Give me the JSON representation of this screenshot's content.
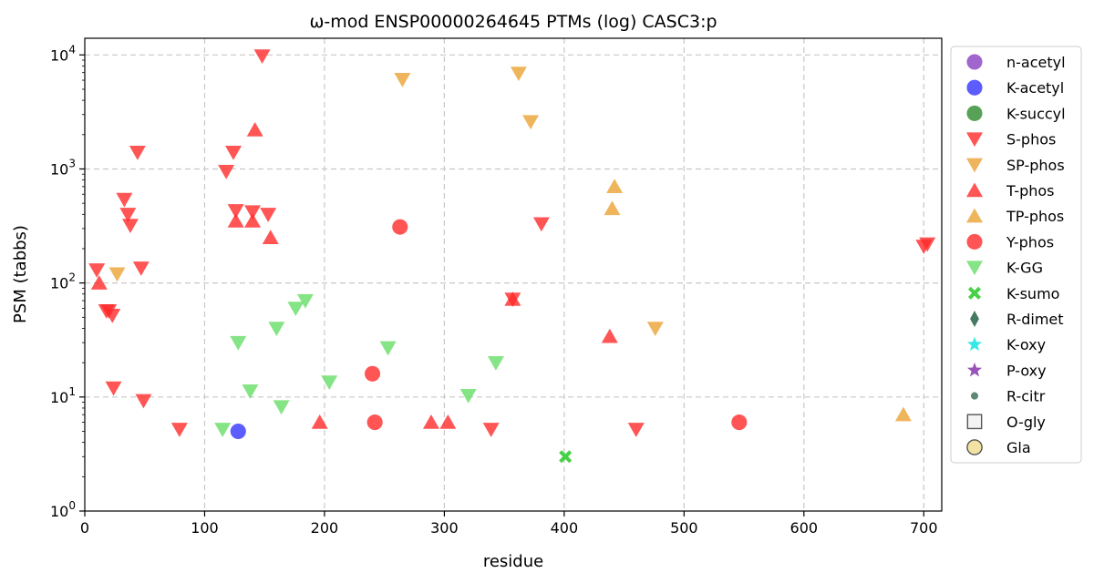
{
  "chart_data": {
    "type": "scatter",
    "title": "ω-mod ENSP00000264645 PTMs (log) CASC3:p",
    "xlabel": "residue",
    "ylabel": "PSM (tabbs)",
    "xlim": [
      0,
      715
    ],
    "ylim": [
      1,
      14000
    ],
    "yscale": "log",
    "grid": true,
    "legend_position": "right",
    "x_ticks": [
      {
        "value": 0,
        "label": "0"
      },
      {
        "value": 100,
        "label": "100"
      },
      {
        "value": 200,
        "label": "200"
      },
      {
        "value": 300,
        "label": "300"
      },
      {
        "value": 400,
        "label": "400"
      },
      {
        "value": 500,
        "label": "500"
      },
      {
        "value": 600,
        "label": "600"
      },
      {
        "value": 700,
        "label": "700"
      }
    ],
    "y_ticks": [
      {
        "value": 1,
        "base": "10",
        "exp": "0"
      },
      {
        "value": 10,
        "base": "10",
        "exp": "1"
      },
      {
        "value": 100,
        "base": "10",
        "exp": "2"
      },
      {
        "value": 1000,
        "base": "10",
        "exp": "3"
      },
      {
        "value": 10000,
        "base": "10",
        "exp": "4"
      }
    ],
    "series": [
      {
        "name": "n-acetyl",
        "marker": "circle",
        "color": "#8a3fc2",
        "points": []
      },
      {
        "name": "K-acetyl",
        "marker": "circle",
        "color": "#3333ff",
        "points": [
          [
            128,
            5
          ]
        ]
      },
      {
        "name": "K-succyl",
        "marker": "circle",
        "color": "#2e8b2e",
        "points": []
      },
      {
        "name": "S-phos",
        "marker": "triangle-down",
        "color": "#ff2b2b",
        "points": [
          [
            10,
            130
          ],
          [
            18,
            57
          ],
          [
            20,
            57
          ],
          [
            23,
            52
          ],
          [
            24,
            12
          ],
          [
            33,
            540
          ],
          [
            36,
            400
          ],
          [
            38,
            320
          ],
          [
            44,
            1400
          ],
          [
            47,
            135
          ],
          [
            49,
            9.3
          ],
          [
            79,
            5.2
          ],
          [
            118,
            950
          ],
          [
            124,
            1400
          ],
          [
            126,
            430
          ],
          [
            140,
            420
          ],
          [
            148,
            9800
          ],
          [
            153,
            400
          ],
          [
            339,
            5.2
          ],
          [
            357,
            72
          ],
          [
            381,
            330
          ],
          [
            460,
            5.2
          ],
          [
            700,
            210
          ],
          [
            703,
            220
          ]
        ]
      },
      {
        "name": "SP-phos",
        "marker": "triangle-down",
        "color": "#eba233",
        "points": [
          [
            27,
            120
          ],
          [
            265,
            6100
          ],
          [
            362,
            6900
          ],
          [
            372,
            2600
          ],
          [
            476,
            40
          ]
        ]
      },
      {
        "name": "T-phos",
        "marker": "triangle-up",
        "color": "#ff2b2b",
        "points": [
          [
            12,
            100
          ],
          [
            126,
            350
          ],
          [
            140,
            350
          ],
          [
            142,
            2200
          ],
          [
            155,
            250
          ],
          [
            196,
            6
          ],
          [
            289,
            6
          ],
          [
            303,
            6
          ],
          [
            357,
            72
          ],
          [
            438,
            34
          ]
        ]
      },
      {
        "name": "TP-phos",
        "marker": "triangle-up",
        "color": "#eba233",
        "points": [
          [
            440,
            450
          ],
          [
            442,
            700
          ],
          [
            683,
            7
          ]
        ]
      },
      {
        "name": "Y-phos",
        "marker": "circle",
        "color": "#ff2b2b",
        "points": [
          [
            240,
            16
          ],
          [
            242,
            6
          ],
          [
            263,
            310
          ],
          [
            546,
            6
          ]
        ]
      },
      {
        "name": "K-GG",
        "marker": "triangle-down",
        "color": "#66dd66",
        "points": [
          [
            115,
            5.2
          ],
          [
            128,
            30
          ],
          [
            138,
            11.3
          ],
          [
            160,
            40
          ],
          [
            164,
            8.2
          ],
          [
            176,
            60
          ],
          [
            184,
            70
          ],
          [
            204,
            13.5
          ],
          [
            253,
            27
          ],
          [
            320,
            10.3
          ],
          [
            343,
            20
          ]
        ]
      },
      {
        "name": "K-sumo",
        "marker": "x",
        "color": "#33cc33",
        "points": [
          [
            401,
            3
          ]
        ]
      },
      {
        "name": "R-dimet",
        "marker": "diamond",
        "color": "#2f6b4f",
        "points": []
      },
      {
        "name": "K-oxy",
        "marker": "star",
        "color": "#22e6e6",
        "points": []
      },
      {
        "name": "P-oxy",
        "marker": "star",
        "color": "#8e3fb0",
        "points": []
      },
      {
        "name": "R-citr",
        "marker": "small-circle",
        "color": "#4f7b65",
        "points": []
      },
      {
        "name": "O-gly",
        "marker": "square-open",
        "color": "#555555",
        "points": []
      },
      {
        "name": "Gla",
        "marker": "circle-open",
        "color": "#f3e3a3",
        "points": []
      }
    ]
  }
}
